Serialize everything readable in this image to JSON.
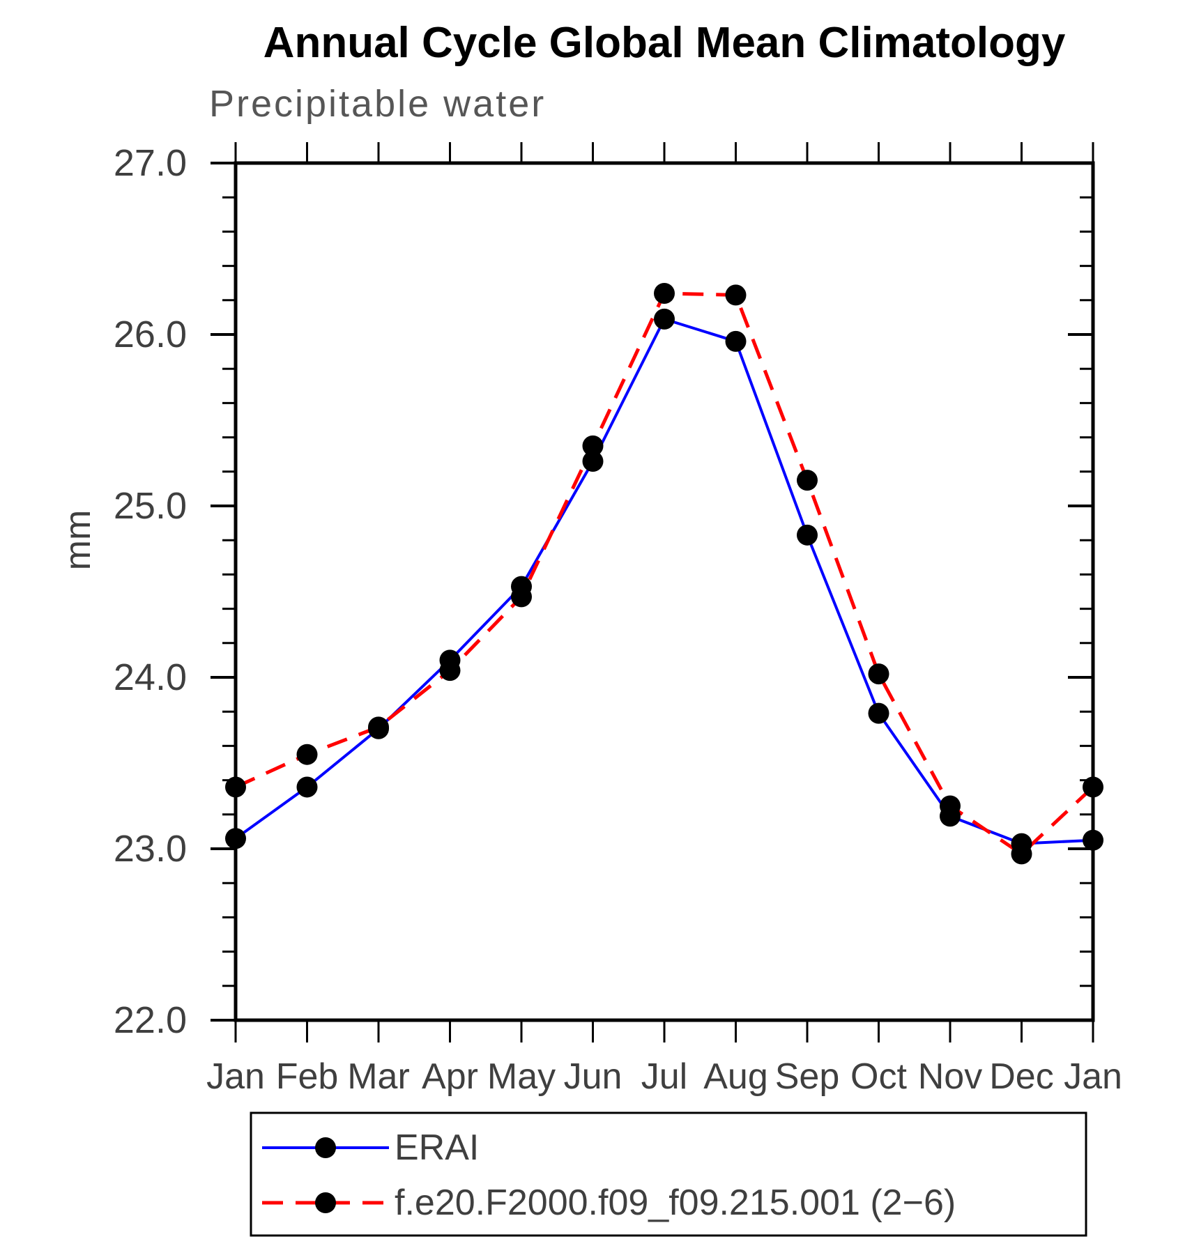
{
  "title": "Annual Cycle Global Mean Climatology",
  "subtitle": "Precipitable water",
  "ylabel": "mm",
  "colors": {
    "erai_line": "#0000ff",
    "model_line": "#ff0000",
    "marker": "#000000",
    "axis": "#000000",
    "tick_label": "#3f3f3f"
  },
  "chart_data": {
    "type": "line",
    "title": "Annual Cycle Global Mean Climatology",
    "subtitle": "Precipitable water",
    "xlabel": "",
    "ylabel": "mm",
    "categories": [
      "Jan",
      "Feb",
      "Mar",
      "Apr",
      "May",
      "Jun",
      "Jul",
      "Aug",
      "Sep",
      "Oct",
      "Nov",
      "Dec",
      "Jan"
    ],
    "series": [
      {
        "name": "ERAI",
        "color": "#0000ff",
        "line_style": "solid",
        "marker": "filled-circle",
        "values": [
          23.06,
          23.36,
          23.7,
          24.1,
          24.53,
          25.26,
          26.09,
          25.96,
          24.83,
          23.79,
          23.19,
          23.03,
          23.05
        ]
      },
      {
        "name": "f.e20.F2000.f09_f09.215.001 (2−6)",
        "color": "#ff0000",
        "line_style": "dashed",
        "marker": "filled-circle",
        "values": [
          23.36,
          23.55,
          23.71,
          24.04,
          24.47,
          25.35,
          26.24,
          26.23,
          25.15,
          24.02,
          23.25,
          22.97,
          23.36
        ]
      }
    ],
    "ylim": [
      22.0,
      27.0
    ],
    "ytick_values": [
      22.0,
      23.0,
      24.0,
      25.0,
      26.0,
      27.0
    ],
    "ytick_labels": [
      "22.0",
      "23.0",
      "24.0",
      "25.0",
      "26.0",
      "27.0"
    ],
    "minor_ytick_step": 0.2,
    "grid": false,
    "legend_position": "below-plot"
  }
}
